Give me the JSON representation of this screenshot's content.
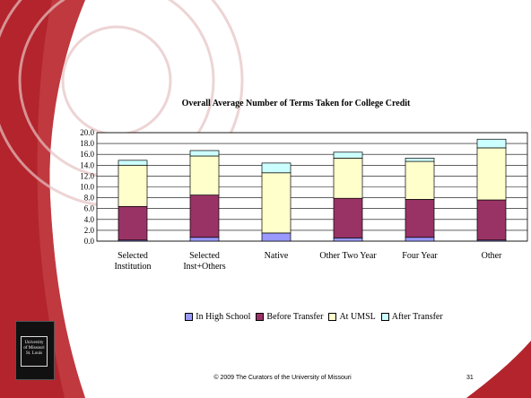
{
  "slide": {
    "footer": "© 2009 The Curators of the University of Missouri",
    "page_number": "31",
    "logo_lines": [
      "University",
      "of Missouri",
      "St. Louis"
    ]
  },
  "colors": {
    "left_band": "#b3242c",
    "seal": "#e6c2c2"
  },
  "chart_data": {
    "type": "bar",
    "stacked": true,
    "title": "Overall Average Number of Terms Taken for College Credit",
    "xlabel": "",
    "ylabel": "",
    "ylim": [
      0,
      20
    ],
    "yticks": [
      "0.0",
      "2.0",
      "4.0",
      "6.0",
      "8.0",
      "10.0",
      "12.0",
      "14.0",
      "16.0",
      "18.0",
      "20.0"
    ],
    "grid": true,
    "legend_position": "bottom",
    "categories": [
      [
        "Selected",
        "Institution"
      ],
      [
        "Selected",
        "Inst+Others"
      ],
      [
        "Native"
      ],
      [
        "Other Two Year"
      ],
      [
        "Four Year"
      ],
      [
        "Other"
      ]
    ],
    "series": [
      {
        "name": "In High School",
        "color": "#9999ff",
        "values": [
          0.2,
          0.7,
          1.5,
          0.6,
          0.7,
          0.2
        ]
      },
      {
        "name": "Before Transfer",
        "color": "#993366",
        "values": [
          6.2,
          7.8,
          0.0,
          7.3,
          7.0,
          7.4
        ]
      },
      {
        "name": "At UMSL",
        "color": "#ffffcc",
        "values": [
          7.6,
          7.2,
          11.1,
          7.4,
          7.0,
          9.6
        ]
      },
      {
        "name": "After Transfer",
        "color": "#ccffff",
        "values": [
          0.9,
          1.0,
          1.8,
          1.1,
          0.6,
          1.6
        ]
      }
    ]
  }
}
